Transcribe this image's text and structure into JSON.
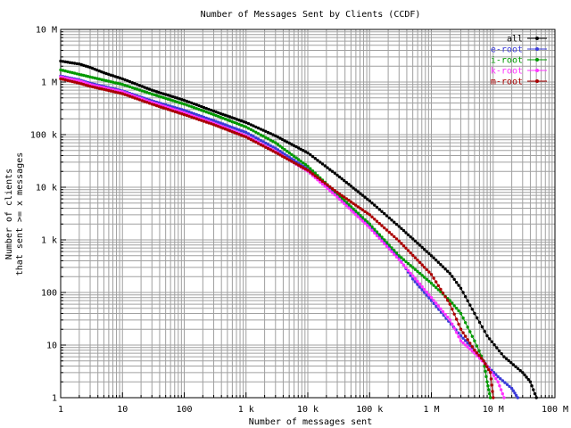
{
  "chart_data": {
    "type": "line",
    "title": "Number of Messages Sent by Clients (CCDF)",
    "xlabel": "Number of messages sent",
    "ylabel_lines": [
      "Number of clients",
      "that sent >= x messages"
    ],
    "xscale": "log",
    "yscale": "log",
    "xlim": [
      1,
      100000000
    ],
    "ylim": [
      1,
      10000000
    ],
    "grid": true,
    "legend_position": "top-right",
    "x_ticks": [
      {
        "value": 1,
        "label": "1"
      },
      {
        "value": 10,
        "label": "10"
      },
      {
        "value": 100,
        "label": "100"
      },
      {
        "value": 1000,
        "label": "1 k"
      },
      {
        "value": 10000,
        "label": "10 k"
      },
      {
        "value": 100000,
        "label": "100 k"
      },
      {
        "value": 1000000,
        "label": "1 M"
      },
      {
        "value": 10000000,
        "label": "10 M"
      },
      {
        "value": 100000000,
        "label": "100 M"
      }
    ],
    "y_ticks": [
      {
        "value": 1,
        "label": "1"
      },
      {
        "value": 10,
        "label": "10"
      },
      {
        "value": 100,
        "label": "100"
      },
      {
        "value": 1000,
        "label": "1 k"
      },
      {
        "value": 10000,
        "label": "10 k"
      },
      {
        "value": 100000,
        "label": "100 k"
      },
      {
        "value": 1000000,
        "label": "1 M"
      },
      {
        "value": 10000000,
        "label": "10 M"
      }
    ],
    "series": [
      {
        "name": "all",
        "color": "#000000",
        "points": [
          [
            1,
            2500000
          ],
          [
            2,
            2200000
          ],
          [
            3,
            1900000
          ],
          [
            5,
            1500000
          ],
          [
            10,
            1150000
          ],
          [
            30,
            700000
          ],
          [
            100,
            450000
          ],
          [
            300,
            280000
          ],
          [
            1000,
            170000
          ],
          [
            3000,
            95000
          ],
          [
            10000,
            45000
          ],
          [
            30000,
            17000
          ],
          [
            100000,
            5500
          ],
          [
            300000,
            1800
          ],
          [
            1000000,
            500
          ],
          [
            2000000,
            230
          ],
          [
            3000000,
            120
          ],
          [
            5000000,
            40
          ],
          [
            8000000,
            15
          ],
          [
            15000000,
            6
          ],
          [
            30000000,
            3
          ],
          [
            40000000,
            2
          ],
          [
            50000000,
            1
          ]
        ]
      },
      {
        "name": "e-root",
        "color": "#3a3ad8",
        "points": [
          [
            1,
            1300000
          ],
          [
            2,
            1100000
          ],
          [
            3,
            950000
          ],
          [
            10,
            680000
          ],
          [
            30,
            440000
          ],
          [
            100,
            290000
          ],
          [
            300,
            185000
          ],
          [
            1000,
            110000
          ],
          [
            3000,
            55000
          ],
          [
            10000,
            22000
          ],
          [
            30000,
            7000
          ],
          [
            100000,
            1800
          ],
          [
            300000,
            450
          ],
          [
            500000,
            180
          ],
          [
            1000000,
            70
          ],
          [
            3000000,
            15
          ],
          [
            5000000,
            8
          ],
          [
            8000000,
            4
          ],
          [
            12000000,
            2.5
          ],
          [
            20000000,
            1.5
          ],
          [
            25000000,
            1
          ]
        ]
      },
      {
        "name": "i-root",
        "color": "#009900",
        "points": [
          [
            1,
            1700000
          ],
          [
            2,
            1400000
          ],
          [
            3,
            1250000
          ],
          [
            10,
            900000
          ],
          [
            30,
            590000
          ],
          [
            100,
            380000
          ],
          [
            300,
            240000
          ],
          [
            1000,
            140000
          ],
          [
            3000,
            70000
          ],
          [
            10000,
            25000
          ],
          [
            30000,
            7500
          ],
          [
            100000,
            2000
          ],
          [
            300000,
            500
          ],
          [
            1000000,
            150
          ],
          [
            2000000,
            70
          ],
          [
            3000000,
            40
          ],
          [
            5000000,
            12
          ],
          [
            7000000,
            5
          ],
          [
            8000000,
            2
          ],
          [
            9000000,
            1
          ]
        ]
      },
      {
        "name": "k-root",
        "color": "#ff33ff",
        "points": [
          [
            1,
            1250000
          ],
          [
            2,
            1050000
          ],
          [
            3,
            900000
          ],
          [
            10,
            650000
          ],
          [
            30,
            410000
          ],
          [
            100,
            260000
          ],
          [
            300,
            165000
          ],
          [
            1000,
            95000
          ],
          [
            3000,
            48000
          ],
          [
            10000,
            20000
          ],
          [
            30000,
            6500
          ],
          [
            100000,
            1700
          ],
          [
            300000,
            420
          ],
          [
            1000000,
            80
          ],
          [
            2000000,
            30
          ],
          [
            3000000,
            12
          ],
          [
            5000000,
            7
          ],
          [
            8000000,
            4
          ],
          [
            12000000,
            2
          ],
          [
            15000000,
            1
          ]
        ]
      },
      {
        "name": "m-root",
        "color": "#aa0000",
        "points": [
          [
            1,
            1150000
          ],
          [
            2,
            950000
          ],
          [
            3,
            830000
          ],
          [
            10,
            600000
          ],
          [
            30,
            380000
          ],
          [
            100,
            240000
          ],
          [
            300,
            155000
          ],
          [
            1000,
            90000
          ],
          [
            3000,
            46000
          ],
          [
            10000,
            21000
          ],
          [
            30000,
            8000
          ],
          [
            100000,
            3000
          ],
          [
            300000,
            950
          ],
          [
            1000000,
            220
          ],
          [
            2000000,
            60
          ],
          [
            3000000,
            20
          ],
          [
            5000000,
            8
          ],
          [
            7000000,
            5
          ],
          [
            9000000,
            3
          ],
          [
            10000000,
            1
          ]
        ]
      }
    ]
  }
}
